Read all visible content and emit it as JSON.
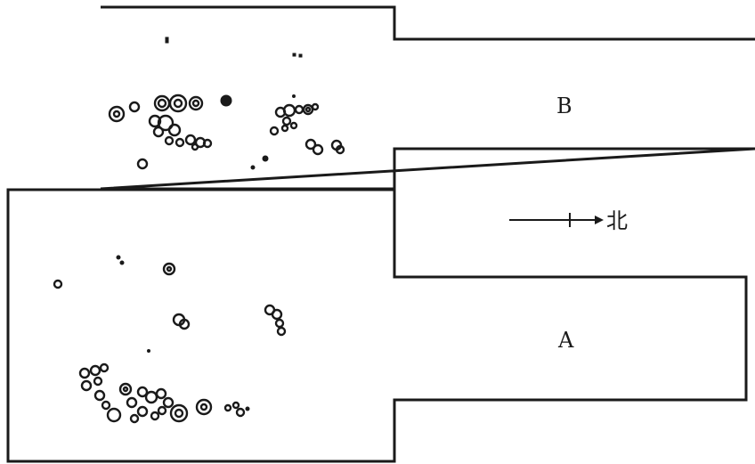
{
  "labels": {
    "area_b": "B",
    "area_a": "A",
    "north": "北"
  },
  "colors": {
    "ink": "#1a1a1a",
    "background": "#ffffff"
  },
  "icons": {
    "north_arrow": "arrow-right-icon"
  }
}
